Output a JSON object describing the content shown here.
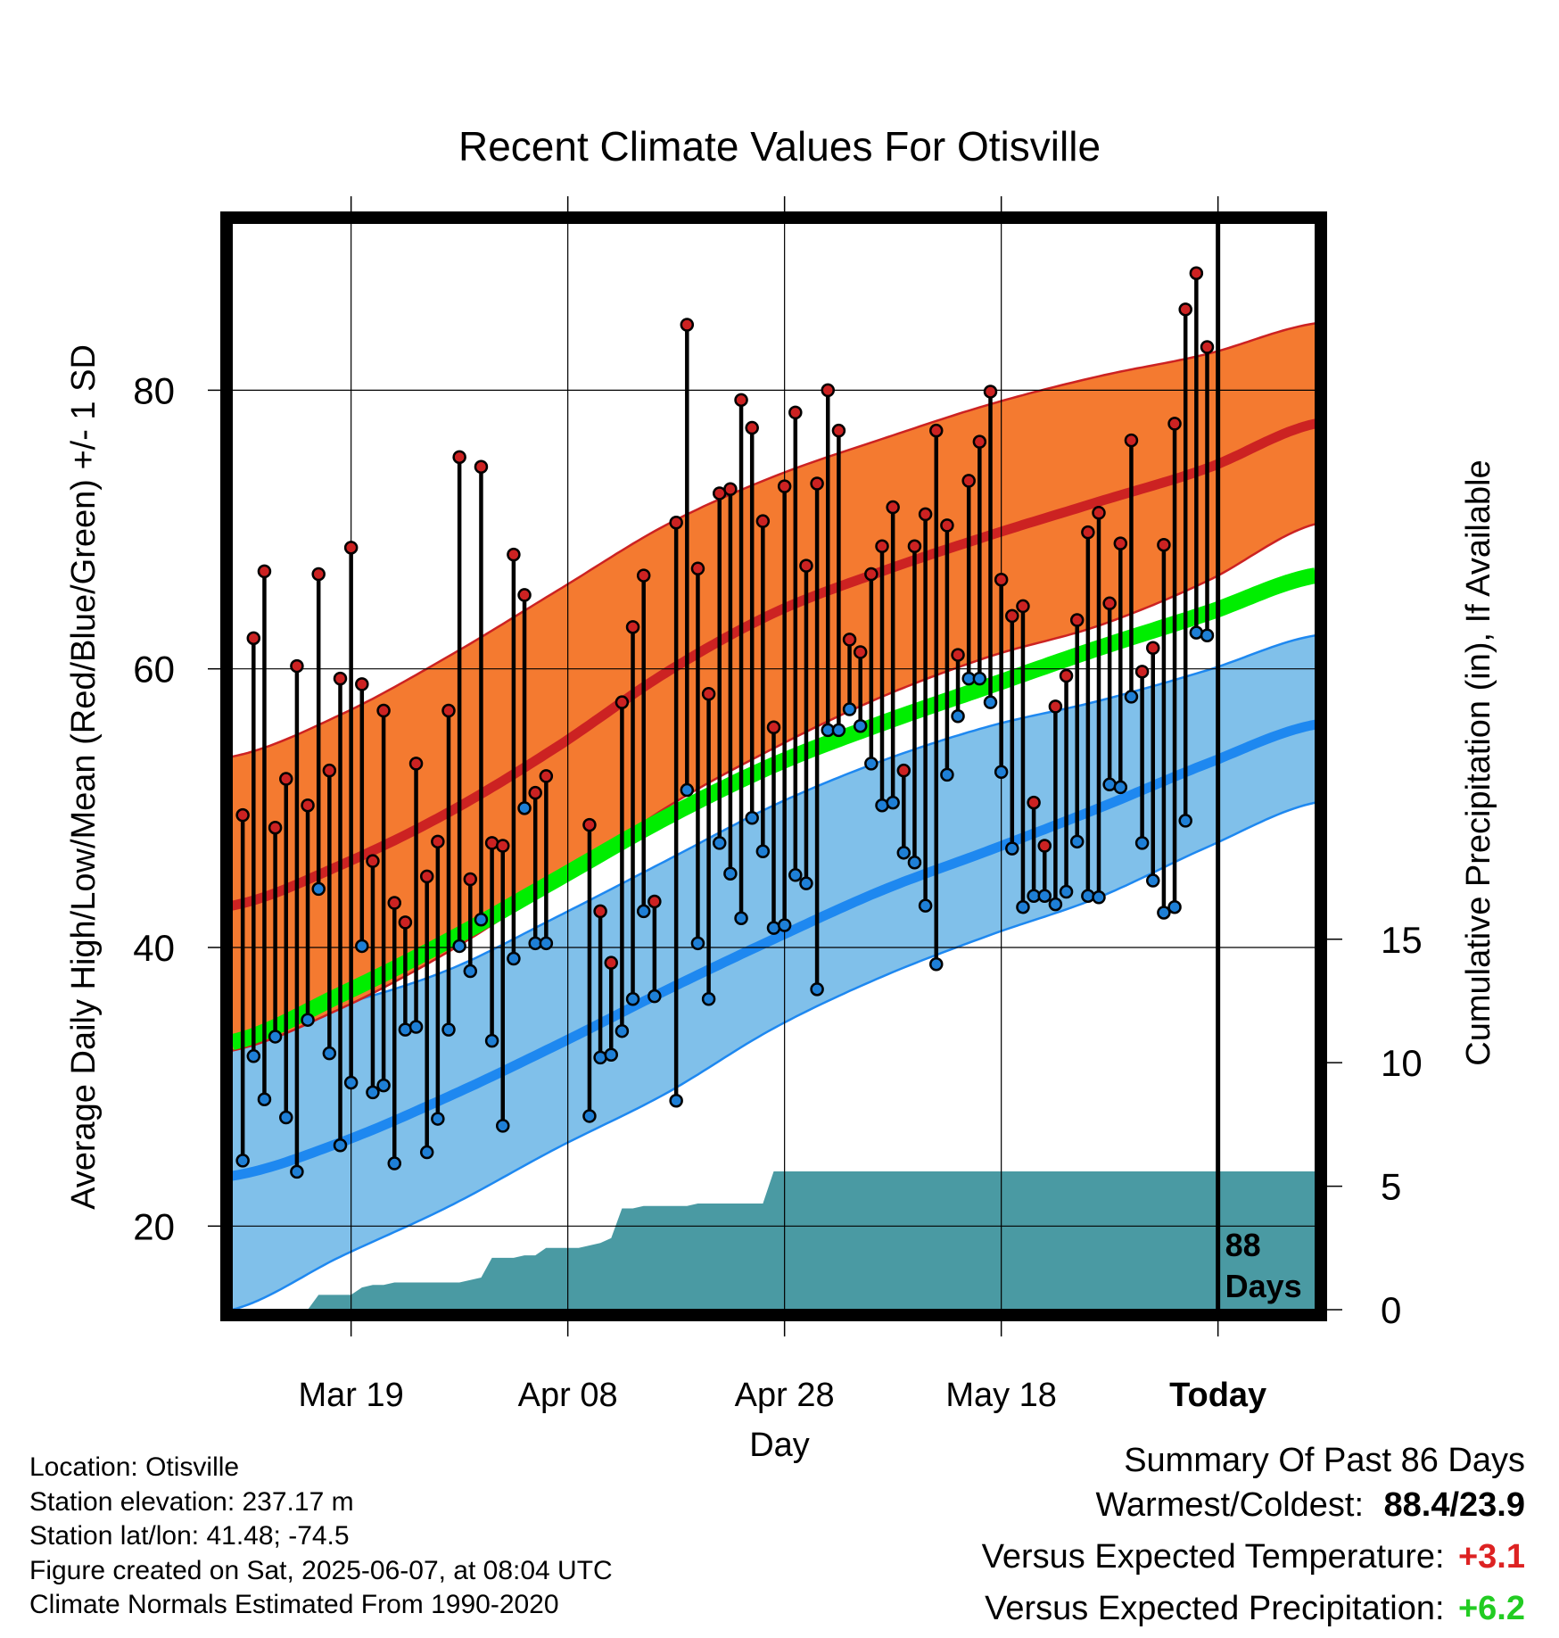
{
  "chart_data": {
    "type": "line",
    "title": "Recent Climate Values For Otisville",
    "xlabel": "Day",
    "ylabel": "Average Daily High/Low/Mean (Red/Blue/Green) +/- 1 SD",
    "y2label": "Cumulative Precipitation (in), If Available",
    "ylim": [
      14,
      92
    ],
    "y2lim": [
      0,
      44
    ],
    "y_ticks": [
      20,
      40,
      60,
      80
    ],
    "y2_ticks": [
      0,
      5,
      10,
      15
    ],
    "x_tick_labels": [
      {
        "day": 10,
        "label": "Mar 19"
      },
      {
        "day": 30,
        "label": "Apr 08"
      },
      {
        "day": 50,
        "label": "Apr 28"
      },
      {
        "day": 70,
        "label": "May 18"
      },
      {
        "day": 90,
        "label": "Today"
      }
    ],
    "xlim": [
      -1,
      99
    ],
    "today_day": 90,
    "today_label_line1": "88",
    "today_label_line2": "Days",
    "normals": {
      "days": [
        -1,
        9,
        19,
        29,
        39,
        49,
        59,
        69,
        79,
        89,
        99
      ],
      "high_mean": [
        43.0,
        45.9,
        49.7,
        54.4,
        59.7,
        64.0,
        67.0,
        69.6,
        72.0,
        74.4,
        77.6
      ],
      "high_upper": [
        53.7,
        56.7,
        60.9,
        65.6,
        70.3,
        73.8,
        76.5,
        79.0,
        81.0,
        82.6,
        84.8
      ],
      "high_lower": [
        32.6,
        35.6,
        39.7,
        44.7,
        50.0,
        54.3,
        58.0,
        60.9,
        63.1,
        66.3,
        70.4
      ],
      "mean": [
        33.2,
        36.6,
        40.5,
        44.9,
        49.3,
        53.1,
        56.1,
        58.8,
        61.5,
        64.0,
        66.7
      ],
      "low_mean": [
        23.6,
        26.0,
        29.3,
        33.0,
        36.9,
        40.6,
        44.1,
        47.0,
        50.0,
        53.2,
        56.0
      ],
      "low_upper": [
        34.2,
        35.9,
        38.4,
        42.2,
        46.2,
        50.2,
        53.4,
        55.9,
        57.7,
        59.9,
        62.4
      ],
      "low_lower": [
        14.0,
        17.8,
        21.4,
        25.6,
        29.5,
        34.2,
        37.9,
        40.9,
        43.6,
        47.2,
        50.4
      ]
    },
    "series": [
      {
        "name": "High",
        "color": "#cc2222",
        "points": [
          [
            0,
            49.5
          ],
          [
            1,
            62.2
          ],
          [
            2,
            67.0
          ],
          [
            3,
            48.6
          ],
          [
            4,
            52.1
          ],
          [
            5,
            60.2
          ],
          [
            6,
            50.2
          ],
          [
            7,
            66.8
          ],
          [
            8,
            52.7
          ],
          [
            9,
            59.3
          ],
          [
            10,
            68.7
          ],
          [
            11,
            58.9
          ],
          [
            12,
            46.2
          ],
          [
            13,
            57.0
          ],
          [
            14,
            43.2
          ],
          [
            15,
            41.8
          ],
          [
            16,
            53.2
          ],
          [
            17,
            45.1
          ],
          [
            18,
            47.6
          ],
          [
            19,
            57.0
          ],
          [
            20,
            75.2
          ],
          [
            21,
            44.9
          ],
          [
            22,
            74.5
          ],
          [
            23,
            47.5
          ],
          [
            24,
            47.3
          ],
          [
            25,
            68.2
          ],
          [
            26,
            65.3
          ],
          [
            27,
            51.1
          ],
          [
            28,
            52.3
          ],
          [
            32,
            48.8
          ],
          [
            33,
            42.6
          ],
          [
            34,
            38.9
          ],
          [
            35,
            57.6
          ],
          [
            36,
            63.0
          ],
          [
            37,
            66.7
          ],
          [
            38,
            43.3
          ],
          [
            40,
            70.5
          ],
          [
            41,
            84.7
          ],
          [
            42,
            67.2
          ],
          [
            43,
            58.2
          ],
          [
            44,
            72.6
          ],
          [
            45,
            72.9
          ],
          [
            46,
            79.3
          ],
          [
            47,
            77.3
          ],
          [
            48,
            70.6
          ],
          [
            49,
            55.8
          ],
          [
            50,
            73.1
          ],
          [
            51,
            78.4
          ],
          [
            52,
            67.4
          ],
          [
            53,
            73.3
          ],
          [
            54,
            80.0
          ],
          [
            55,
            77.1
          ],
          [
            56,
            62.1
          ],
          [
            57,
            61.2
          ],
          [
            58,
            66.8
          ],
          [
            59,
            68.8
          ],
          [
            60,
            71.6
          ],
          [
            61,
            52.7
          ],
          [
            62,
            68.8
          ],
          [
            63,
            71.1
          ],
          [
            64,
            77.1
          ],
          [
            65,
            70.3
          ],
          [
            66,
            61.0
          ],
          [
            67,
            73.5
          ],
          [
            68,
            76.3
          ],
          [
            69,
            79.9
          ],
          [
            70,
            66.4
          ],
          [
            71,
            63.8
          ],
          [
            72,
            64.5
          ],
          [
            73,
            50.4
          ],
          [
            74,
            47.3
          ],
          [
            75,
            57.3
          ],
          [
            76,
            59.5
          ],
          [
            77,
            63.5
          ],
          [
            78,
            69.8
          ],
          [
            79,
            71.2
          ],
          [
            80,
            64.7
          ],
          [
            81,
            69.0
          ],
          [
            82,
            76.4
          ],
          [
            83,
            59.8
          ],
          [
            84,
            61.5
          ],
          [
            85,
            68.9
          ],
          [
            86,
            77.6
          ],
          [
            87,
            85.8
          ],
          [
            88,
            88.4
          ],
          [
            89,
            83.1
          ]
        ]
      },
      {
        "name": "Low",
        "color": "#1e7fd6",
        "points": [
          [
            0,
            24.7
          ],
          [
            1,
            32.2
          ],
          [
            2,
            29.1
          ],
          [
            3,
            33.6
          ],
          [
            4,
            27.8
          ],
          [
            5,
            23.9
          ],
          [
            6,
            34.8
          ],
          [
            7,
            44.2
          ],
          [
            8,
            32.4
          ],
          [
            9,
            25.8
          ],
          [
            10,
            30.3
          ],
          [
            11,
            40.1
          ],
          [
            12,
            29.6
          ],
          [
            13,
            30.1
          ],
          [
            14,
            24.5
          ],
          [
            15,
            34.1
          ],
          [
            16,
            34.3
          ],
          [
            17,
            25.3
          ],
          [
            18,
            27.7
          ],
          [
            19,
            34.1
          ],
          [
            20,
            40.1
          ],
          [
            21,
            38.3
          ],
          [
            22,
            42.0
          ],
          [
            23,
            33.3
          ],
          [
            24,
            27.2
          ],
          [
            25,
            39.2
          ],
          [
            26,
            50.0
          ],
          [
            27,
            40.3
          ],
          [
            28,
            40.3
          ],
          [
            32,
            27.9
          ],
          [
            33,
            32.1
          ],
          [
            34,
            32.3
          ],
          [
            35,
            34.0
          ],
          [
            36,
            36.3
          ],
          [
            37,
            42.6
          ],
          [
            38,
            36.5
          ],
          [
            40,
            29.0
          ],
          [
            41,
            51.3
          ],
          [
            42,
            40.3
          ],
          [
            43,
            36.3
          ],
          [
            44,
            47.5
          ],
          [
            45,
            45.3
          ],
          [
            46,
            42.1
          ],
          [
            47,
            49.3
          ],
          [
            48,
            46.9
          ],
          [
            49,
            41.4
          ],
          [
            50,
            41.6
          ],
          [
            51,
            45.2
          ],
          [
            52,
            44.6
          ],
          [
            53,
            37.0
          ],
          [
            54,
            55.6
          ],
          [
            55,
            55.6
          ],
          [
            56,
            57.1
          ],
          [
            57,
            55.9
          ],
          [
            58,
            53.2
          ],
          [
            59,
            50.2
          ],
          [
            60,
            50.4
          ],
          [
            61,
            46.8
          ],
          [
            62,
            46.1
          ],
          [
            63,
            43.0
          ],
          [
            64,
            38.8
          ],
          [
            65,
            52.4
          ],
          [
            66,
            56.6
          ],
          [
            67,
            59.3
          ],
          [
            68,
            59.3
          ],
          [
            69,
            57.6
          ],
          [
            70,
            52.6
          ],
          [
            71,
            47.1
          ],
          [
            72,
            42.9
          ],
          [
            73,
            43.7
          ],
          [
            74,
            43.7
          ],
          [
            75,
            43.1
          ],
          [
            76,
            44.0
          ],
          [
            77,
            47.6
          ],
          [
            78,
            43.7
          ],
          [
            79,
            43.6
          ],
          [
            80,
            51.7
          ],
          [
            81,
            51.5
          ],
          [
            82,
            58.0
          ],
          [
            83,
            47.5
          ],
          [
            84,
            44.8
          ],
          [
            85,
            42.5
          ],
          [
            86,
            42.9
          ],
          [
            87,
            49.1
          ],
          [
            88,
            62.6
          ],
          [
            89,
            62.4
          ]
        ]
      }
    ],
    "precipitation": {
      "name": "Cumulative Precipitation",
      "color": "#4a9aa3",
      "days": [
        6,
        7,
        8,
        9,
        10,
        11,
        12,
        13,
        14,
        15,
        16,
        17,
        18,
        19,
        20,
        21,
        22,
        23,
        24,
        25,
        26,
        27,
        28,
        29,
        30,
        31,
        32,
        33,
        34,
        35,
        36,
        37,
        38,
        39,
        40,
        41,
        42,
        43,
        44,
        45,
        46,
        47,
        48,
        49,
        50,
        51,
        52,
        53,
        54,
        55,
        56,
        57,
        58,
        59,
        60,
        61,
        62,
        63,
        64,
        65,
        66,
        67,
        68,
        69,
        70,
        71,
        72,
        73,
        74,
        75,
        76,
        77,
        78,
        79,
        80,
        81,
        82,
        83,
        84,
        85,
        86,
        87,
        88,
        89,
        90,
        91,
        92,
        93,
        94,
        95,
        96,
        97,
        98,
        99
      ],
      "values": [
        0.0,
        0.6,
        0.6,
        0.6,
        0.6,
        0.9,
        1.0,
        1.0,
        1.1,
        1.1,
        1.1,
        1.1,
        1.1,
        1.1,
        1.1,
        1.2,
        1.3,
        2.1,
        2.1,
        2.1,
        2.2,
        2.2,
        2.5,
        2.5,
        2.5,
        2.5,
        2.6,
        2.7,
        2.9,
        4.1,
        4.1,
        4.2,
        4.2,
        4.2,
        4.2,
        4.2,
        4.3,
        4.3,
        4.3,
        4.3,
        4.3,
        4.3,
        4.3,
        5.6,
        5.6,
        5.6,
        5.6,
        5.6,
        5.6,
        5.6,
        5.6,
        5.6,
        5.6,
        5.6,
        5.6,
        5.6,
        5.6,
        5.6,
        5.6,
        5.6,
        5.6,
        5.6,
        5.6,
        5.6,
        5.6,
        5.6,
        5.6,
        5.6,
        5.6,
        5.6,
        5.6,
        5.6,
        5.6,
        5.6,
        5.6,
        5.6,
        5.6,
        5.6,
        5.6,
        5.6,
        5.6,
        5.6,
        5.6,
        5.6,
        5.6,
        5.6,
        5.6,
        5.6,
        5.6,
        5.6,
        5.6,
        5.6,
        5.6,
        5.6
      ]
    }
  },
  "info": {
    "location": "Location: Otisville",
    "elevation": "Station elevation: 237.17 m",
    "latlon": "Station lat/lon: 41.48; -74.5",
    "created": "Figure created on Sat, 2025-06-07, at 08:04 UTC",
    "normals": "Climate Normals Estimated From 1990-2020"
  },
  "summary": {
    "heading": "Summary Of Past 86 Days",
    "warm_cold_label": "Warmest/Coldest:",
    "warm_cold_value": "88.4/23.9",
    "temp_label": "Versus Expected Temperature:",
    "temp_value": "+3.1",
    "temp_color": "#dd2222",
    "precip_label": "Versus Expected Precipitation:",
    "precip_value": "+6.2",
    "precip_color": "#22cc22"
  },
  "colors": {
    "high_band": "#f47a30",
    "high_line": "#cc2222",
    "low_band": "#80c0ea",
    "low_line": "#1e88f0",
    "mean_line": "#00ee00"
  }
}
